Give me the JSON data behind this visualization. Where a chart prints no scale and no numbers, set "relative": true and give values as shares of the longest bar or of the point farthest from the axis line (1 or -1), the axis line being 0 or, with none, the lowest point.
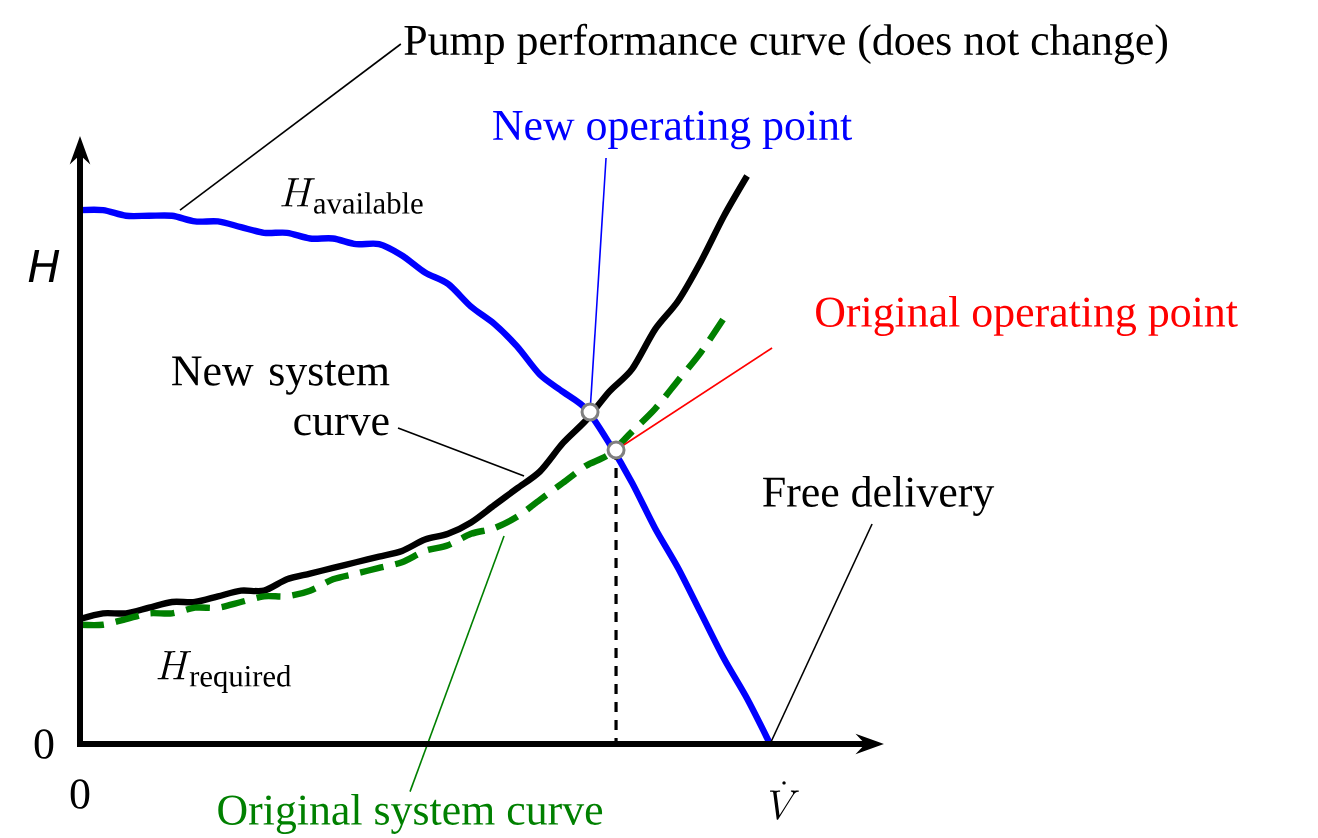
{
  "chart_data": {
    "type": "line",
    "relative": true,
    "xlabel": "\\dot{V}",
    "ylabel": "H",
    "categories": [
      null,
      null,
      null,
      null,
      null,
      null,
      null,
      null,
      null,
      null,
      null,
      null,
      null,
      null,
      null,
      null,
      null,
      null,
      null,
      null,
      null,
      null,
      null,
      null,
      null,
      null,
      null,
      null,
      null,
      null,
      null
    ],
    "series": [
      {
        "name": "Pump performance curve (does not change)",
        "color": "#0000ff",
        "line_style": "solid",
        "values": [
          0.94,
          0.94,
          0.93,
          0.93,
          0.93,
          0.92,
          0.92,
          0.91,
          0.9,
          0.9,
          0.89,
          0.89,
          0.88,
          0.88,
          0.86,
          0.83,
          0.81,
          0.77,
          0.74,
          0.7,
          0.65,
          0.62,
          0.59,
          0.53,
          0.46,
          0.38,
          0.31,
          0.23,
          0.15,
          0.08,
          0
        ]
      },
      {
        "name": "New system curve",
        "color": "#000000",
        "line_style": "solid",
        "values": [
          0.22,
          0.23,
          0.23,
          0.24,
          0.25,
          0.25,
          0.26,
          0.27,
          0.27,
          0.29,
          0.3,
          0.31,
          0.32,
          0.33,
          0.34,
          0.36,
          0.37,
          0.39,
          0.42,
          0.45,
          0.48,
          0.53,
          0.57,
          0.62,
          0.66,
          0.73,
          0.78,
          0.85,
          0.93,
          1,
          null
        ]
      },
      {
        "name": "Original system curve",
        "color": "#008000",
        "line_style": "dashed",
        "values": [
          0.21,
          0.21,
          0.22,
          0.23,
          0.23,
          0.24,
          0.24,
          0.25,
          0.26,
          0.26,
          0.27,
          0.29,
          0.3,
          0.31,
          0.32,
          0.34,
          0.35,
          0.37,
          0.38,
          0.4,
          0.43,
          0.46,
          0.49,
          0.51,
          0.55,
          0.59,
          0.64,
          0.69,
          0.75,
          null,
          null
        ]
      }
    ],
    "annotations": [
      "New operating point",
      "Original operating point",
      "Free delivery",
      "H_{\\mathrm{available}}",
      "H_{\\mathrm{required}}",
      "0",
      "0"
    ]
  }
}
